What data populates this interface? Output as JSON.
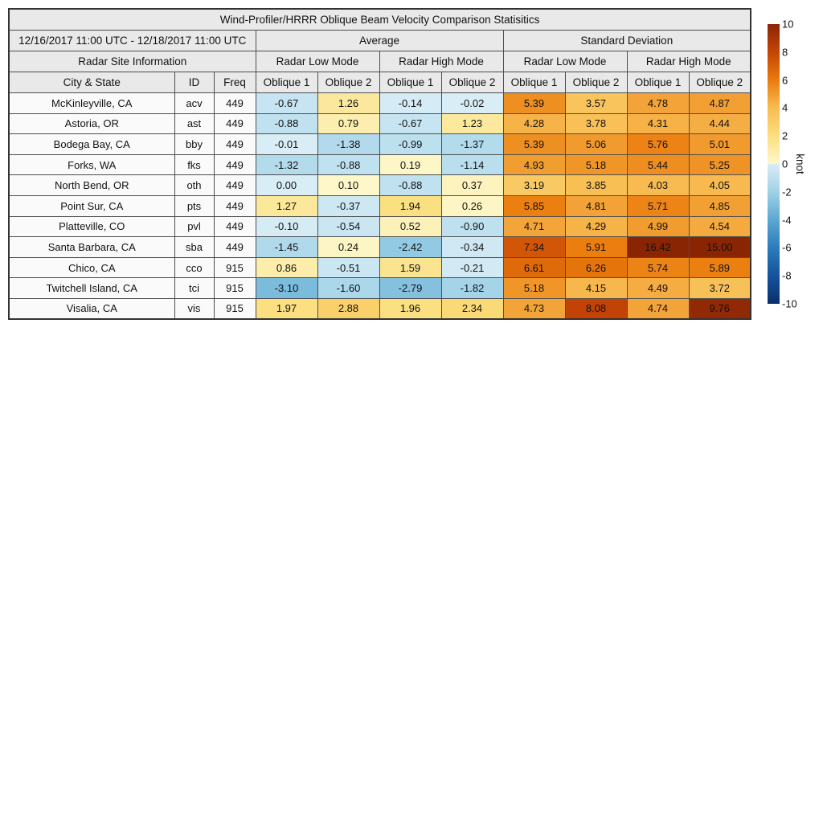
{
  "title": "Wind-Profiler/HRRR Oblique Beam Velocity Comparison Statisitics",
  "header": {
    "period": "12/16/2017 11:00 UTC - 12/18/2017 11:00 UTC",
    "average": "Average",
    "std_dev": "Standard Deviation",
    "site_info": "Radar Site Information",
    "low_mode": "Radar Low Mode",
    "high_mode": "Radar High Mode",
    "city": "City & State",
    "id": "ID",
    "freq": "Freq",
    "oblique1": "Oblique 1",
    "oblique2": "Oblique 2"
  },
  "colorbar": {
    "unit": "knot",
    "min": -10,
    "max": 10,
    "ticks": [
      10,
      8,
      6,
      4,
      2,
      0,
      -2,
      -4,
      -6,
      -8,
      -10
    ],
    "negative_stops": [
      [
        -10,
        "#0a2f6b"
      ],
      [
        -8,
        "#15539e"
      ],
      [
        -6,
        "#2b7cbc"
      ],
      [
        -4,
        "#5ca8d2"
      ],
      [
        -2,
        "#a0d2e7"
      ],
      [
        0,
        "#d9edf6"
      ]
    ],
    "positive_stops": [
      [
        0,
        "#fdf8cd"
      ],
      [
        2,
        "#fbdf7f"
      ],
      [
        4,
        "#f8bc52"
      ],
      [
        6,
        "#ea7b0c"
      ],
      [
        8,
        "#c44405"
      ],
      [
        10,
        "#8a2504"
      ]
    ]
  },
  "chart_data": {
    "type": "heatmap",
    "title": "Wind-Profiler/HRRR Oblique Beam Velocity Comparison Statisitics",
    "subtitle": "12/16/2017 11:00 UTC - 12/18/2017 11:00 UTC",
    "unit": "knot",
    "colorbar_range": [
      -10,
      10
    ],
    "legend_position": "right",
    "value_columns": [
      "Average Radar Low Mode Oblique 1",
      "Average Radar Low Mode Oblique 2",
      "Average Radar High Mode Oblique 1",
      "Average Radar High Mode Oblique 2",
      "Standard Deviation Radar Low Mode Oblique 1",
      "Standard Deviation Radar Low Mode Oblique 2",
      "Standard Deviation Radar High Mode Oblique 1",
      "Standard Deviation Radar High Mode Oblique 2"
    ],
    "rows": [
      {
        "city": "McKinleyville, CA",
        "id": "acv",
        "freq": "449",
        "values": [
          -0.67,
          1.26,
          -0.14,
          -0.02,
          5.39,
          3.57,
          4.78,
          4.87
        ]
      },
      {
        "city": "Astoria, OR",
        "id": "ast",
        "freq": "449",
        "values": [
          -0.88,
          0.79,
          -0.67,
          1.23,
          4.28,
          3.78,
          4.31,
          4.44
        ]
      },
      {
        "city": "Bodega Bay, CA",
        "id": "bby",
        "freq": "449",
        "values": [
          -0.01,
          -1.38,
          -0.99,
          -1.37,
          5.39,
          5.06,
          5.76,
          5.01
        ]
      },
      {
        "city": "Forks, WA",
        "id": "fks",
        "freq": "449",
        "values": [
          -1.32,
          -0.88,
          0.19,
          -1.14,
          4.93,
          5.18,
          5.44,
          5.25
        ]
      },
      {
        "city": "North Bend, OR",
        "id": "oth",
        "freq": "449",
        "values": [
          0.0,
          0.1,
          -0.88,
          0.37,
          3.19,
          3.85,
          4.03,
          4.05
        ]
      },
      {
        "city": "Point Sur, CA",
        "id": "pts",
        "freq": "449",
        "values": [
          1.27,
          -0.37,
          1.94,
          0.26,
          5.85,
          4.81,
          5.71,
          4.85
        ]
      },
      {
        "city": "Platteville, CO",
        "id": "pvl",
        "freq": "449",
        "values": [
          -0.1,
          -0.54,
          0.52,
          -0.9,
          4.71,
          4.29,
          4.99,
          4.54
        ]
      },
      {
        "city": "Santa Barbara, CA",
        "id": "sba",
        "freq": "449",
        "values": [
          -1.45,
          0.24,
          -2.42,
          -0.34,
          7.34,
          5.91,
          16.42,
          15.0
        ]
      },
      {
        "city": "Chico, CA",
        "id": "cco",
        "freq": "915",
        "values": [
          0.86,
          -0.51,
          1.59,
          -0.21,
          6.61,
          6.26,
          5.74,
          5.89
        ]
      },
      {
        "city": "Twitchell Island, CA",
        "id": "tci",
        "freq": "915",
        "values": [
          -3.1,
          -1.6,
          -2.79,
          -1.82,
          5.18,
          4.15,
          4.49,
          3.72
        ]
      },
      {
        "city": "Visalia, CA",
        "id": "vis",
        "freq": "915",
        "values": [
          1.97,
          2.88,
          1.96,
          2.34,
          4.73,
          8.08,
          4.74,
          9.76
        ]
      }
    ]
  }
}
